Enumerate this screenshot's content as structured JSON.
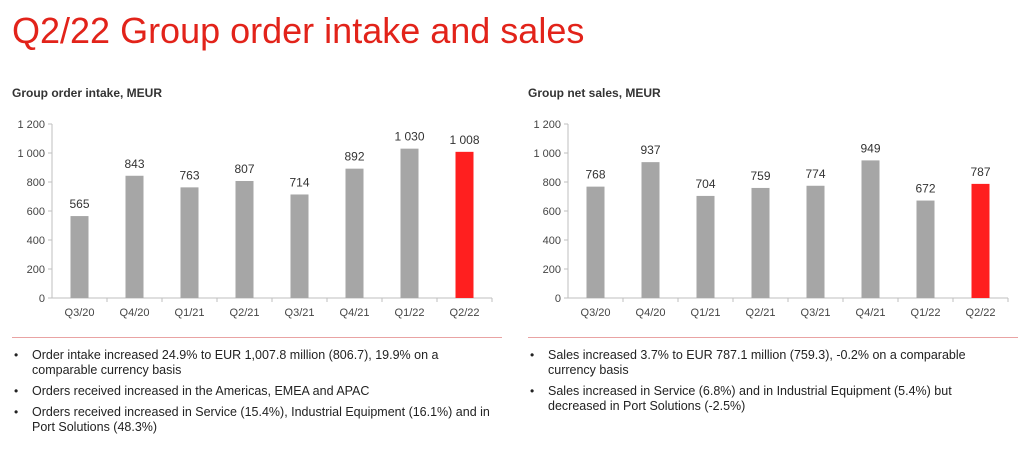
{
  "page": {
    "title": "Q2/22 Group order intake and sales"
  },
  "colors": {
    "accent": "#e2231a",
    "bar": "#a6a6a6",
    "highlight": "#ff1f1f"
  },
  "left": {
    "subtitle": "Group order intake, MEUR",
    "bullets": [
      "Order intake increased 24.9% to EUR 1,007.8 million (806.7), 19.9% on a comparable currency basis",
      "Orders received increased in the Americas, EMEA and APAC",
      "Orders received increased in Service (15.4%), Industrial Equipment (16.1%) and in Port Solutions (48.3%)"
    ]
  },
  "right": {
    "subtitle": "Group net sales, MEUR",
    "bullets": [
      "Sales increased 3.7% to EUR 787.1 million (759.3), -0.2% on a comparable currency basis",
      "Sales increased  in Service (6.8%) and in Industrial Equipment (5.4%) but decreased in Port Solutions (-2.5%)"
    ]
  },
  "chart_data": [
    {
      "type": "bar",
      "title": "Group order intake, MEUR",
      "categories": [
        "Q3/20",
        "Q4/20",
        "Q1/21",
        "Q2/21",
        "Q3/21",
        "Q4/21",
        "Q1/22",
        "Q2/22"
      ],
      "values": [
        565,
        843,
        763,
        807,
        714,
        892,
        1030,
        1008
      ],
      "value_labels": [
        "565",
        "843",
        "763",
        "807",
        "714",
        "892",
        "1 030",
        "1 008"
      ],
      "highlight_index": 7,
      "ylim": [
        0,
        1200
      ],
      "yticks": [
        0,
        200,
        400,
        600,
        800,
        1000,
        1200
      ],
      "ytick_labels": [
        "0",
        "200",
        "400",
        "600",
        "800",
        "1 000",
        "1 200"
      ],
      "xlabel": "",
      "ylabel": "",
      "grid": false
    },
    {
      "type": "bar",
      "title": "Group net sales, MEUR",
      "categories": [
        "Q3/20",
        "Q4/20",
        "Q1/21",
        "Q2/21",
        "Q3/21",
        "Q4/21",
        "Q1/22",
        "Q2/22"
      ],
      "values": [
        768,
        937,
        704,
        759,
        774,
        949,
        672,
        787
      ],
      "value_labels": [
        "768",
        "937",
        "704",
        "759",
        "774",
        "949",
        "672",
        "787"
      ],
      "highlight_index": 7,
      "ylim": [
        0,
        1200
      ],
      "yticks": [
        0,
        200,
        400,
        600,
        800,
        1000,
        1200
      ],
      "ytick_labels": [
        "0",
        "200",
        "400",
        "600",
        "800",
        "1 000",
        "1 200"
      ],
      "xlabel": "",
      "ylabel": "",
      "grid": false
    }
  ]
}
